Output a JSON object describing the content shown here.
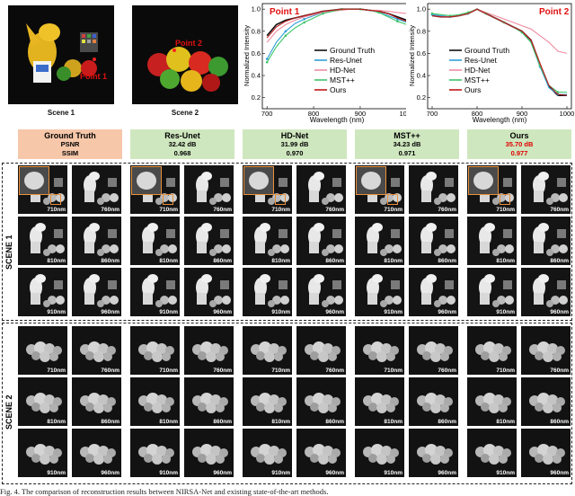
{
  "scenes": [
    {
      "label": "Scene 1",
      "point_label": "Point 1"
    },
    {
      "label": "Scene 2",
      "point_label": "Point 2"
    }
  ],
  "plot_common": {
    "ylabel": "Normalized Intensity",
    "xlabel": "Wavelength (nm)",
    "yticks": [
      "0.2",
      "0.4",
      "0.6",
      "0.8",
      "1.0"
    ],
    "xticks": [
      "700",
      "800",
      "900",
      "1000"
    ]
  },
  "legend": [
    "Ground Truth",
    "Res-Unet",
    "HD-Net",
    "MST++",
    "Ours"
  ],
  "colors": {
    "ground_truth": "#111111",
    "res_unet": "#2f9fd8",
    "hd_net": "#f08ca0",
    "mst": "#3fc56a",
    "ours": "#c01818",
    "point_label": "#e01010"
  },
  "chart_data": [
    {
      "type": "line",
      "title": "Point 1",
      "xlabel": "Wavelength (nm)",
      "ylabel": "Normalized Intensity",
      "xlim": [
        690,
        1010
      ],
      "ylim": [
        0.1,
        1.05
      ],
      "x": [
        700,
        720,
        740,
        760,
        780,
        800,
        820,
        840,
        860,
        880,
        900,
        920,
        940,
        960,
        980,
        1000
      ],
      "series": [
        {
          "name": "Ground Truth",
          "values": [
            0.76,
            0.86,
            0.9,
            0.92,
            0.94,
            0.96,
            0.98,
            0.99,
            1.0,
            1.0,
            1.0,
            0.99,
            0.98,
            0.96,
            0.93,
            0.9
          ]
        },
        {
          "name": "Res-Unet",
          "values": [
            0.55,
            0.7,
            0.8,
            0.87,
            0.91,
            0.94,
            0.97,
            0.99,
            1.0,
            1.0,
            1.0,
            0.99,
            0.97,
            0.94,
            0.91,
            0.88
          ]
        },
        {
          "name": "HD-Net",
          "values": [
            0.7,
            0.8,
            0.86,
            0.9,
            0.93,
            0.95,
            0.97,
            0.98,
            0.99,
            1.0,
            1.0,
            0.99,
            0.99,
            0.98,
            0.97,
            0.96
          ]
        },
        {
          "name": "MST++",
          "values": [
            0.52,
            0.66,
            0.76,
            0.83,
            0.88,
            0.92,
            0.96,
            0.98,
            1.0,
            1.0,
            1.0,
            0.99,
            0.97,
            0.93,
            0.89,
            0.86
          ]
        },
        {
          "name": "Ours",
          "values": [
            0.74,
            0.84,
            0.89,
            0.92,
            0.94,
            0.96,
            0.98,
            0.99,
            1.0,
            1.0,
            1.0,
            0.99,
            0.98,
            0.96,
            0.92,
            0.89
          ]
        }
      ]
    },
    {
      "type": "line",
      "title": "Point 2",
      "xlabel": "Wavelength (nm)",
      "ylabel": "Normalized Intensity",
      "xlim": [
        690,
        1010
      ],
      "ylim": [
        0.1,
        1.05
      ],
      "x": [
        700,
        720,
        740,
        760,
        780,
        800,
        820,
        840,
        860,
        880,
        900,
        920,
        940,
        960,
        980,
        1000
      ],
      "series": [
        {
          "name": "Ground Truth",
          "values": [
            0.94,
            0.93,
            0.93,
            0.94,
            0.96,
            1.0,
            0.96,
            0.92,
            0.88,
            0.84,
            0.8,
            0.72,
            0.5,
            0.3,
            0.22,
            0.22
          ]
        },
        {
          "name": "Res-Unet",
          "values": [
            0.95,
            0.94,
            0.93,
            0.94,
            0.96,
            1.0,
            0.96,
            0.92,
            0.88,
            0.84,
            0.79,
            0.7,
            0.48,
            0.29,
            0.23,
            0.23
          ]
        },
        {
          "name": "HD-Net",
          "values": [
            0.94,
            0.93,
            0.93,
            0.94,
            0.96,
            1.0,
            0.97,
            0.94,
            0.91,
            0.88,
            0.85,
            0.82,
            0.76,
            0.7,
            0.62,
            0.6
          ]
        },
        {
          "name": "MST++",
          "values": [
            0.96,
            0.95,
            0.94,
            0.95,
            0.97,
            1.0,
            0.96,
            0.92,
            0.88,
            0.84,
            0.79,
            0.7,
            0.49,
            0.31,
            0.25,
            0.25
          ]
        },
        {
          "name": "Ours",
          "values": [
            0.94,
            0.93,
            0.93,
            0.94,
            0.96,
            1.0,
            0.96,
            0.92,
            0.88,
            0.84,
            0.8,
            0.72,
            0.51,
            0.31,
            0.23,
            0.22
          ]
        }
      ]
    }
  ],
  "metrics_header": {
    "psnr_label": "PSNR",
    "ssim_label": "SSIM"
  },
  "methods": [
    {
      "name": "Ground Truth",
      "bg": "#f6c7a9"
    },
    {
      "name": "Res-Unet",
      "psnr": "32.42 dB",
      "ssim": "0.968",
      "bg": "#cfe7bf"
    },
    {
      "name": "HD-Net",
      "psnr": "31.99 dB",
      "ssim": "0.970",
      "bg": "#cfe7bf"
    },
    {
      "name": "MST++",
      "psnr": "34.23 dB",
      "ssim": "0.971",
      "bg": "#cfe7bf"
    },
    {
      "name": "Ours",
      "psnr": "35.70 dB",
      "ssim": "0.977",
      "bg": "#cfe7bf"
    }
  ],
  "section_labels": [
    "SCENE 1",
    "SCENE 2"
  ],
  "wavelengths": [
    "710nm",
    "760nm",
    "810nm",
    "860nm",
    "910nm",
    "960nm"
  ],
  "caption": "Fig. 4. The comparison of reconstruction results between NIRSA-Net and existing state-of-the-art methods."
}
